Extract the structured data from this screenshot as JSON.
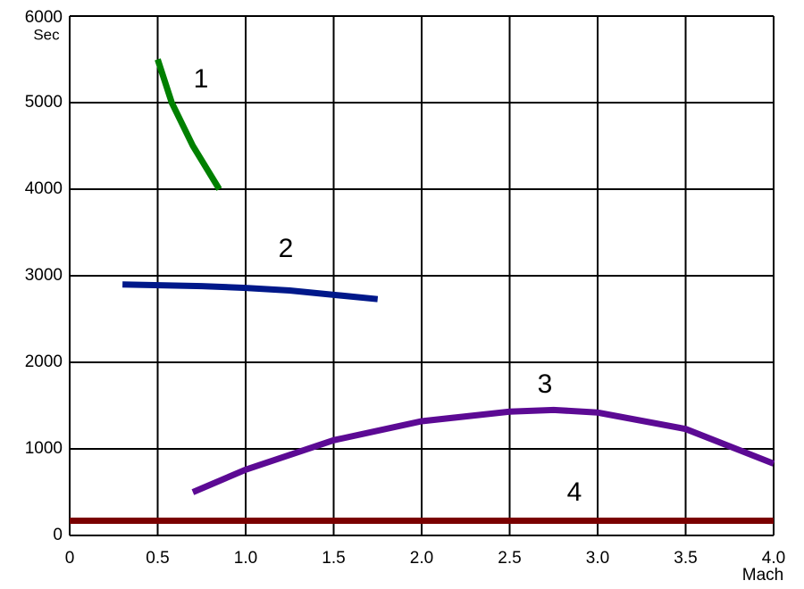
{
  "chart_data": {
    "type": "line",
    "y_label": "Sec",
    "x_label": "Mach",
    "xlim": [
      0,
      4.0
    ],
    "ylim": [
      0,
      6000
    ],
    "xticks": [
      0,
      0.5,
      {
        "value": 1,
        "label": "1.0"
      },
      1.5,
      {
        "value": 2,
        "label": "2.0"
      },
      2.5,
      {
        "value": 3,
        "label": "3.0"
      },
      3.5,
      {
        "value": 4,
        "label": "4.0"
      }
    ],
    "yticks": [
      0,
      1000,
      2000,
      3000,
      4000,
      5000,
      6000
    ],
    "grid": true,
    "series": [
      {
        "name": "1",
        "color": "#008000",
        "x": [
          0.5,
          0.58,
          0.7,
          0.85
        ],
        "values": [
          5500,
          5000,
          4500,
          4000
        ]
      },
      {
        "name": "2",
        "color": "#00188a",
        "x": [
          0.3,
          0.75,
          1.0,
          1.25,
          1.5,
          1.75
        ],
        "values": [
          2900,
          2880,
          2860,
          2830,
          2780,
          2730
        ]
      },
      {
        "name": "3",
        "color": "#5c0a94",
        "x": [
          0.7,
          1.0,
          1.5,
          2.0,
          2.5,
          2.75,
          3.0,
          3.5,
          4.0
        ],
        "values": [
          500,
          760,
          1100,
          1320,
          1430,
          1450,
          1420,
          1230,
          830
        ]
      },
      {
        "name": "4",
        "color": "#7a0000",
        "x": [
          0,
          4.0
        ],
        "values": [
          170,
          170
        ]
      }
    ]
  }
}
